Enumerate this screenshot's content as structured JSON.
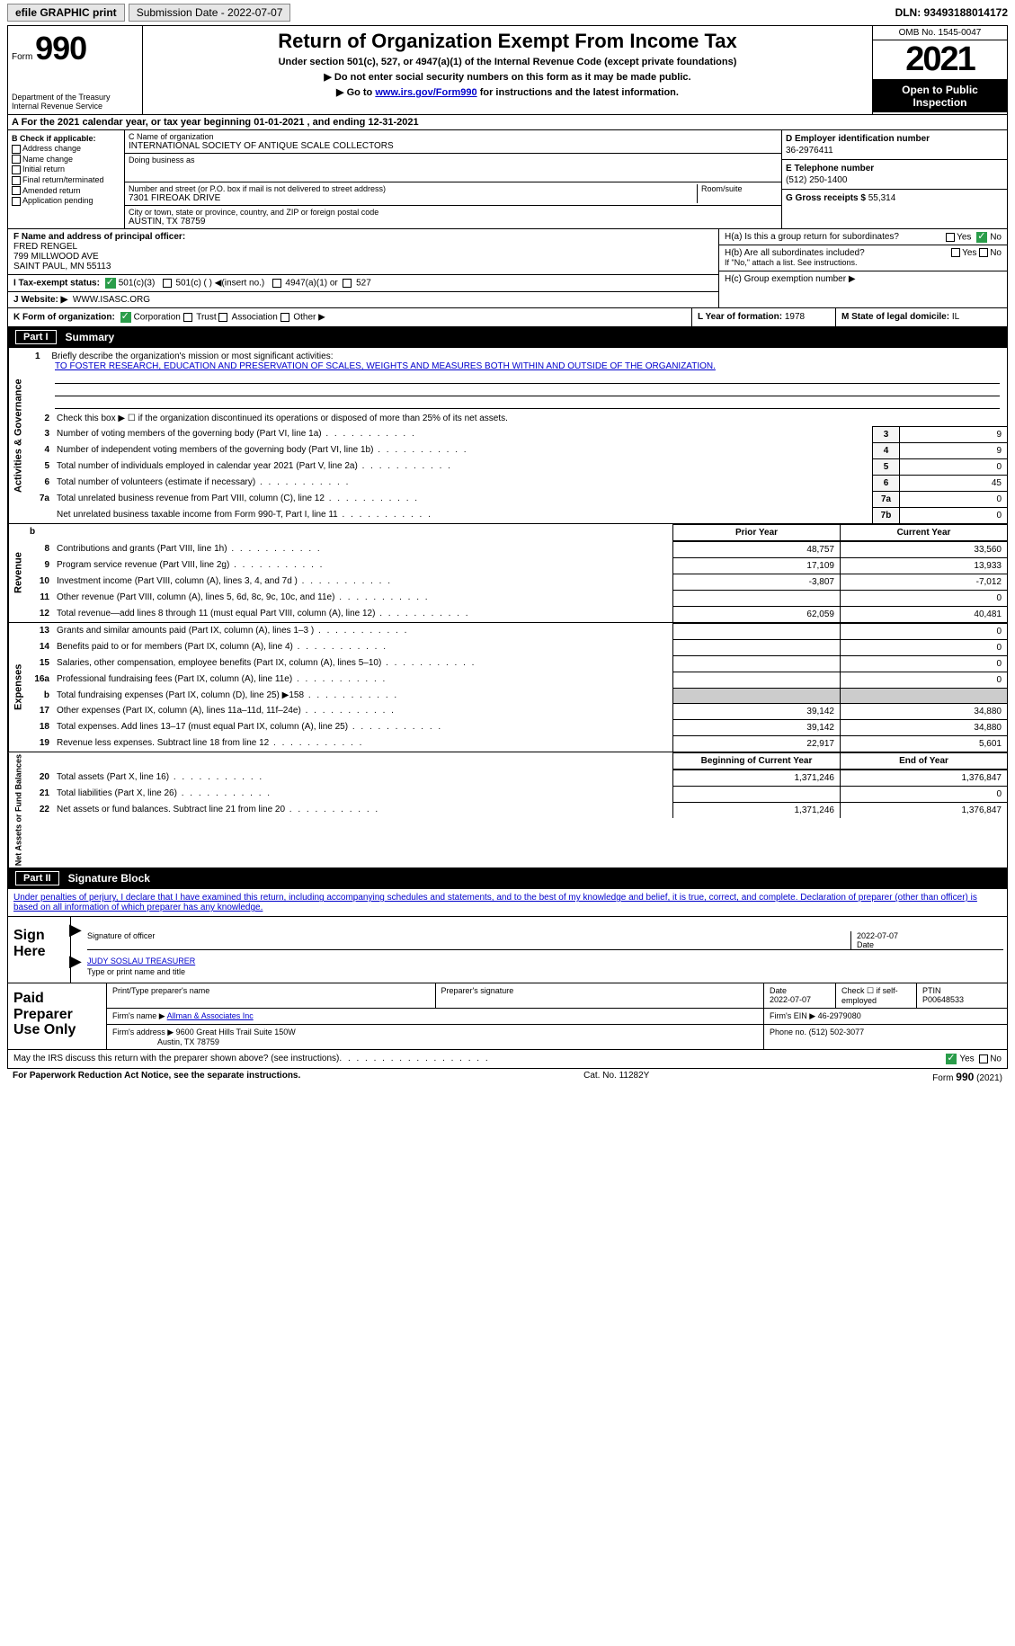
{
  "topbar": {
    "efile_label": "efile GRAPHIC print",
    "submission_label": "Submission Date - 2022-07-07",
    "dln_label": "DLN: 93493188014172"
  },
  "header": {
    "form_label": "Form",
    "form_number": "990",
    "dept": "Department of the Treasury Internal Revenue Service",
    "title": "Return of Organization Exempt From Income Tax",
    "sub1": "Under section 501(c), 527, or 4947(a)(1) of the Internal Revenue Code (except private foundations)",
    "sub2": "▶ Do not enter social security numbers on this form as it may be made public.",
    "sub3_a": "▶ Go to ",
    "sub3_link": "www.irs.gov/Form990",
    "sub3_b": " for instructions and the latest information.",
    "omb": "OMB No. 1545-0047",
    "year": "2021",
    "open": "Open to Public Inspection"
  },
  "rowA": "A For the 2021 calendar year, or tax year beginning 01-01-2021   , and ending 12-31-2021",
  "boxB": {
    "title": "B Check if applicable:",
    "opts": [
      "Address change",
      "Name change",
      "Initial return",
      "Final return/terminated",
      "Amended return",
      "Application pending"
    ]
  },
  "boxC": {
    "name_lbl": "C Name of organization",
    "name": "INTERNATIONAL SOCIETY OF ANTIQUE SCALE COLLECTORS",
    "dba_lbl": "Doing business as",
    "dba": "",
    "street_lbl": "Number and street (or P.O. box if mail is not delivered to street address)",
    "room_lbl": "Room/suite",
    "street": "7301 FIREOAK DRIVE",
    "city_lbl": "City or town, state or province, country, and ZIP or foreign postal code",
    "city": "AUSTIN, TX  78759"
  },
  "boxD": {
    "lbl": "D Employer identification number",
    "val": "36-2976411"
  },
  "boxE": {
    "lbl": "E Telephone number",
    "val": "(512) 250-1400"
  },
  "boxG": {
    "lbl": "G Gross receipts $",
    "val": "55,314"
  },
  "boxF": {
    "lbl": "F  Name and address of principal officer:",
    "name": "FRED RENGEL",
    "addr1": "799 MILLWOOD AVE",
    "addr2": "SAINT PAUL, MN  55113"
  },
  "boxH": {
    "a_lbl": "H(a)  Is this a group return for subordinates?",
    "yes": "Yes",
    "no": "No",
    "b_lbl": "H(b)  Are all subordinates included?",
    "b_note": "If \"No,\" attach a list. See instructions.",
    "c_lbl": "H(c)  Group exemption number ▶"
  },
  "boxI": {
    "lbl": "I    Tax-exempt status:",
    "o1": "501(c)(3)",
    "o2": "501(c) (  ) ◀(insert no.)",
    "o3": "4947(a)(1) or",
    "o4": "527"
  },
  "boxJ": {
    "lbl": "J   Website: ▶",
    "val": "WWW.ISASC.ORG"
  },
  "boxK": {
    "lbl": "K Form of organization:",
    "o1": "Corporation",
    "o2": "Trust",
    "o3": "Association",
    "o4": "Other ▶"
  },
  "boxL": {
    "lbl": "L Year of formation:",
    "val": "1978"
  },
  "boxM": {
    "lbl": "M State of legal domicile:",
    "val": "IL"
  },
  "parts": {
    "p1": "Part I",
    "p1_title": "Summary",
    "p2": "Part II",
    "p2_title": "Signature Block"
  },
  "line1": {
    "num": "1",
    "lbl": "Briefly describe the organization's mission or most significant activities:",
    "text": "TO FOSTER RESEARCH, EDUCATION AND PRESERVATION OF SCALES, WEIGHTS AND MEASURES BOTH WITHIN AND OUTSIDE OF THE ORGANIZATION."
  },
  "line2": {
    "num": "2",
    "lbl": "Check this box ▶ ☐  if the organization discontinued its operations or disposed of more than 25% of its net assets."
  },
  "lines_gov": [
    {
      "n": "3",
      "d": "Number of voting members of the governing body (Part VI, line 1a)",
      "bn": "3",
      "v": "9"
    },
    {
      "n": "4",
      "d": "Number of independent voting members of the governing body (Part VI, line 1b)",
      "bn": "4",
      "v": "9"
    },
    {
      "n": "5",
      "d": "Total number of individuals employed in calendar year 2021 (Part V, line 2a)",
      "bn": "5",
      "v": "0"
    },
    {
      "n": "6",
      "d": "Total number of volunteers (estimate if necessary)",
      "bn": "6",
      "v": "45"
    },
    {
      "n": "7a",
      "d": "Total unrelated business revenue from Part VIII, column (C), line 12",
      "bn": "7a",
      "v": "0"
    },
    {
      "n": "",
      "d": "Net unrelated business taxable income from Form 990-T, Part I, line 11",
      "bn": "7b",
      "v": "0"
    }
  ],
  "vtabs": {
    "gov": "Activities & Governance",
    "rev": "Revenue",
    "exp": "Expenses",
    "net": "Net Assets or Fund Balances"
  },
  "rev_hdr": {
    "b": "b",
    "prior": "Prior Year",
    "curr": "Current Year"
  },
  "lines_rev": [
    {
      "n": "8",
      "d": "Contributions and grants (Part VIII, line 1h)",
      "p": "48,757",
      "c": "33,560"
    },
    {
      "n": "9",
      "d": "Program service revenue (Part VIII, line 2g)",
      "p": "17,109",
      "c": "13,933"
    },
    {
      "n": "10",
      "d": "Investment income (Part VIII, column (A), lines 3, 4, and 7d )",
      "p": "-3,807",
      "c": "-7,012"
    },
    {
      "n": "11",
      "d": "Other revenue (Part VIII, column (A), lines 5, 6d, 8c, 9c, 10c, and 11e)",
      "p": "",
      "c": "0"
    },
    {
      "n": "12",
      "d": "Total revenue—add lines 8 through 11 (must equal Part VIII, column (A), line 12)",
      "p": "62,059",
      "c": "40,481"
    }
  ],
  "lines_exp": [
    {
      "n": "13",
      "d": "Grants and similar amounts paid (Part IX, column (A), lines 1–3 )",
      "p": "",
      "c": "0"
    },
    {
      "n": "14",
      "d": "Benefits paid to or for members (Part IX, column (A), line 4)",
      "p": "",
      "c": "0"
    },
    {
      "n": "15",
      "d": "Salaries, other compensation, employee benefits (Part IX, column (A), lines 5–10)",
      "p": "",
      "c": "0"
    },
    {
      "n": "16a",
      "d": "Professional fundraising fees (Part IX, column (A), line 11e)",
      "p": "",
      "c": "0"
    },
    {
      "n": "b",
      "d": "Total fundraising expenses (Part IX, column (D), line 25) ▶158",
      "p": "grey",
      "c": "grey"
    },
    {
      "n": "17",
      "d": "Other expenses (Part IX, column (A), lines 11a–11d, 11f–24e)",
      "p": "39,142",
      "c": "34,880"
    },
    {
      "n": "18",
      "d": "Total expenses. Add lines 13–17 (must equal Part IX, column (A), line 25)",
      "p": "39,142",
      "c": "34,880"
    },
    {
      "n": "19",
      "d": "Revenue less expenses. Subtract line 18 from line 12",
      "p": "22,917",
      "c": "5,601"
    }
  ],
  "net_hdr": {
    "begin": "Beginning of Current Year",
    "end": "End of Year"
  },
  "lines_net": [
    {
      "n": "20",
      "d": "Total assets (Part X, line 16)",
      "p": "1,371,246",
      "c": "1,376,847"
    },
    {
      "n": "21",
      "d": "Total liabilities (Part X, line 26)",
      "p": "",
      "c": "0"
    },
    {
      "n": "22",
      "d": "Net assets or fund balances. Subtract line 21 from line 20",
      "p": "1,371,246",
      "c": "1,376,847"
    }
  ],
  "sig_intro": "Under penalties of perjury, I declare that I have examined this return, including accompanying schedules and statements, and to the best of my knowledge and belief, it is true, correct, and complete. Declaration of preparer (other than officer) is based on all information of which preparer has any knowledge.",
  "sign": {
    "lbl": "Sign Here",
    "l1a": "Signature of officer",
    "l1b": "Date",
    "l1b_val": "2022-07-07",
    "l2a": "JUDY SOSLAU  TREASURER",
    "l2b": "Type or print name and title"
  },
  "pp": {
    "lbl": "Paid Preparer Use Only",
    "r1": {
      "a": "Print/Type preparer's name",
      "b": "Preparer's signature",
      "c_lbl": "Date",
      "c": "2022-07-07",
      "d": "Check ☐ if self-employed",
      "e_lbl": "PTIN",
      "e": "P00648533"
    },
    "r2": {
      "a": "Firm's name    ▶",
      "a_val": "Allman & Associates Inc",
      "b": "Firm's EIN ▶",
      "b_val": "46-2979080"
    },
    "r3": {
      "a": "Firm's address ▶",
      "a_val": "9600 Great Hills Trail Suite 150W",
      "a_val2": "Austin, TX  78759",
      "b": "Phone no.",
      "b_val": "(512) 502-3077"
    }
  },
  "discuss": {
    "lbl": "May the IRS discuss this return with the preparer shown above? (see instructions)",
    "yes": "Yes",
    "no": "No"
  },
  "footer": {
    "a": "For Paperwork Reduction Act Notice, see the separate instructions.",
    "b": "Cat. No. 11282Y",
    "c": "Form 990 (2021)"
  }
}
